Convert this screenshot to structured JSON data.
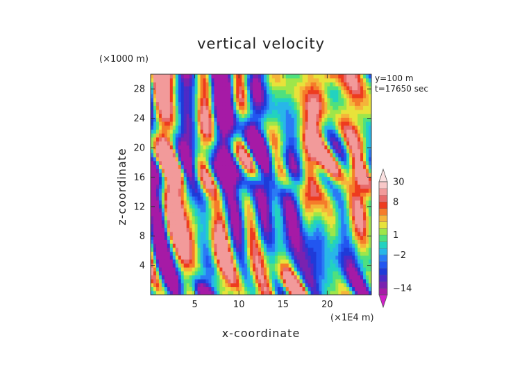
{
  "chart_data": {
    "type": "heatmap",
    "title": "vertical velocity",
    "xlabel": "x-coordinate",
    "ylabel": "z-coordinate",
    "x_unit": "(×1E4 m)",
    "y_unit": "(×1000 m)",
    "annotations": [
      "y=100 m",
      "t=17650 sec"
    ],
    "xlim": [
      0,
      25
    ],
    "ylim": [
      0,
      30
    ],
    "x_ticks": [
      5,
      10,
      15,
      20
    ],
    "y_ticks": [
      4,
      8,
      12,
      16,
      20,
      24,
      28
    ],
    "colorbar": {
      "tick_labels": [
        "30",
        "8",
        "1",
        "−2",
        "−14"
      ],
      "tick_values": [
        30,
        8,
        1,
        -2,
        -14
      ],
      "levels": [
        -20,
        -14,
        -10,
        -6,
        -4,
        -3,
        -2,
        -1,
        0,
        1,
        2,
        3,
        4,
        6,
        8,
        14,
        20,
        30
      ],
      "colors": [
        "#a61aa6",
        "#7a22b0",
        "#4d2bc7",
        "#1f3ad8",
        "#2256f0",
        "#2a7bf5",
        "#28b6e8",
        "#22d2c0",
        "#4fe07e",
        "#9ee64a",
        "#e8e23a",
        "#f5b43a",
        "#f57c2a",
        "#ee3b1f",
        "#e86a6a",
        "#f29a9a",
        "#f8c8c8"
      ],
      "under_color": "#d01ec8",
      "over_color": "#fae0e0"
    }
  }
}
